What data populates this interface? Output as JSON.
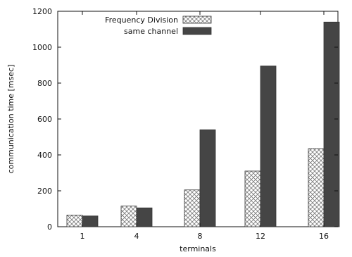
{
  "chart_data": {
    "type": "bar",
    "categories": [
      "1",
      "4",
      "8",
      "12",
      "16"
    ],
    "series": [
      {
        "name": "Frequency Division",
        "values": [
          65,
          115,
          205,
          310,
          435
        ],
        "color": "#ffffff",
        "pattern": "crosshatch"
      },
      {
        "name": "same channel",
        "values": [
          60,
          105,
          540,
          895,
          1140
        ],
        "color": "#454545",
        "pattern": "solid"
      }
    ],
    "xlabel": "terminals",
    "ylabel": "communication time [msec]",
    "ylim": [
      0,
      1200
    ],
    "yticks": [
      0,
      200,
      400,
      600,
      800,
      1000,
      1200
    ],
    "grid": false,
    "legend": "top-left"
  }
}
